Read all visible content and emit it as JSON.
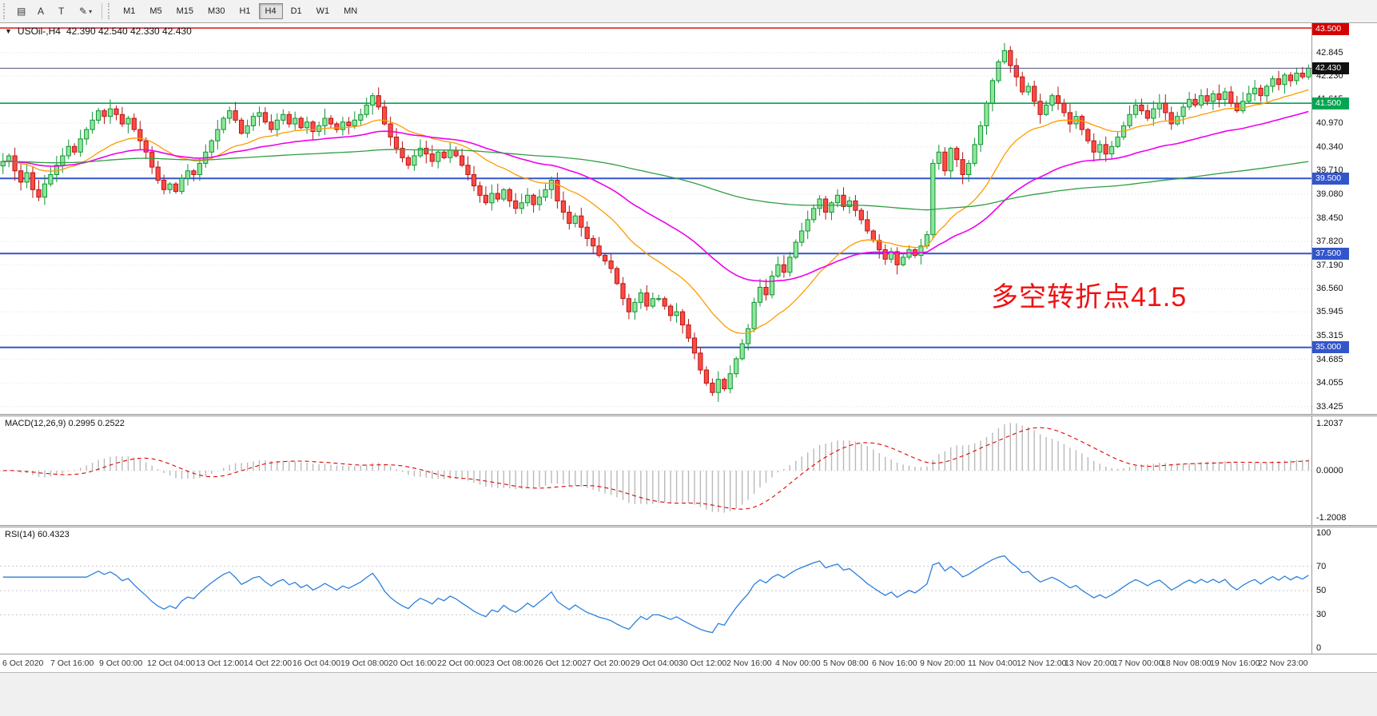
{
  "toolbar": {
    "tools": [
      {
        "name": "charts-tool",
        "icon": "chart-bars-icon",
        "glyph": "▤"
      },
      {
        "name": "cursor-a-tool",
        "icon": "text-a-icon",
        "glyph": "A"
      },
      {
        "name": "text-tool",
        "icon": "text-t-icon",
        "glyph": "T"
      },
      {
        "name": "draw-tool",
        "icon": "pencil-icon",
        "glyph": "✎",
        "caret": "▾"
      }
    ],
    "timeframes": [
      "M1",
      "M5",
      "M15",
      "M30",
      "H1",
      "H4",
      "D1",
      "W1",
      "MN"
    ],
    "active_timeframe": "H4"
  },
  "chart": {
    "dropdown_glyph": "▼",
    "symbol_period": "USOil-,H4",
    "ohlc_readout": "42.390 42.540 42.330 42.430"
  },
  "chart_data": {
    "type": "candlestick",
    "symbol": "USOil-",
    "period": "H4",
    "current_bar": {
      "open": 42.39,
      "high": 42.54,
      "low": 42.33,
      "close": 42.43
    },
    "current_price": "42.430",
    "ylim": [
      33.23,
      43.63
    ],
    "y_ticks": [
      "42.845",
      "42.230",
      "41.615",
      "40.970",
      "40.340",
      "39.710",
      "39.080",
      "38.450",
      "37.820",
      "37.190",
      "36.560",
      "35.945",
      "35.315",
      "34.685",
      "34.055",
      "33.425"
    ],
    "x_labels": [
      "6 Oct 2020",
      "7 Oct 16:00",
      "9 Oct 00:00",
      "12 Oct 04:00",
      "13 Oct 12:00",
      "14 Oct 22:00",
      "16 Oct 04:00",
      "19 Oct 08:00",
      "20 Oct 16:00",
      "22 Oct 00:00",
      "23 Oct 08:00",
      "26 Oct 12:00",
      "27 Oct 20:00",
      "29 Oct 04:00",
      "30 Oct 12:00",
      "2 Nov 16:00",
      "4 Nov 00:00",
      "5 Nov 08:00",
      "6 Nov 16:00",
      "9 Nov 20:00",
      "11 Nov 04:00",
      "12 Nov 12:00",
      "13 Nov 20:00",
      "17 Nov 00:00",
      "18 Nov 08:00",
      "19 Nov 16:00",
      "22 Nov 23:00"
    ],
    "hlines": [
      {
        "value": 43.5,
        "label": "43.500",
        "color": "#d40000",
        "width": 1.4
      },
      {
        "value": 41.5,
        "label": "41.500",
        "color": "#00a651",
        "width": 1.6
      },
      {
        "value": 39.5,
        "label": "39.500",
        "color": "#3355cc",
        "width": 2
      },
      {
        "value": 37.5,
        "label": "37.500",
        "color": "#3355cc",
        "width": 2
      },
      {
        "value": 35.0,
        "label": "35.000",
        "color": "#3355cc",
        "width": 2
      }
    ],
    "bid_line": {
      "value": 42.43,
      "color": "#50507a"
    },
    "candles": {
      "up_fill": "#8ee79b",
      "up_stroke": "#0f9333",
      "down_fill": "#ff4a42",
      "down_stroke": "#b51616"
    },
    "closes": [
      39.95,
      40.1,
      39.7,
      39.4,
      39.65,
      39.2,
      39.0,
      39.35,
      39.6,
      39.85,
      40.1,
      40.35,
      40.2,
      40.55,
      40.8,
      41.05,
      41.3,
      41.15,
      41.35,
      41.2,
      40.95,
      41.1,
      40.8,
      40.5,
      40.2,
      39.8,
      39.45,
      39.2,
      39.35,
      39.15,
      39.5,
      39.7,
      39.6,
      39.9,
      40.2,
      40.5,
      40.8,
      41.1,
      41.3,
      41.05,
      40.7,
      40.9,
      41.15,
      41.25,
      41.0,
      40.8,
      41.05,
      41.2,
      40.95,
      41.1,
      40.85,
      41.0,
      40.75,
      40.9,
      41.1,
      40.95,
      40.8,
      41.0,
      40.9,
      41.05,
      41.2,
      41.45,
      41.7,
      41.4,
      40.95,
      40.6,
      40.3,
      40.05,
      39.85,
      40.1,
      40.3,
      40.15,
      39.95,
      40.2,
      40.05,
      40.25,
      40.1,
      39.85,
      39.6,
      39.3,
      39.05,
      38.85,
      39.1,
      38.95,
      39.2,
      38.9,
      38.7,
      38.85,
      39.05,
      38.8,
      39.0,
      39.2,
      39.45,
      38.9,
      38.6,
      38.3,
      38.5,
      38.2,
      37.9,
      37.7,
      37.45,
      37.3,
      37.1,
      36.7,
      36.3,
      35.95,
      36.2,
      36.45,
      36.1,
      36.3,
      36.3,
      36.1,
      35.85,
      35.95,
      35.6,
      35.25,
      34.85,
      34.4,
      34.05,
      33.8,
      34.15,
      33.9,
      34.3,
      34.7,
      35.1,
      35.5,
      36.2,
      36.6,
      36.4,
      36.9,
      37.2,
      37.0,
      37.4,
      37.8,
      38.1,
      38.4,
      38.7,
      38.95,
      38.6,
      38.85,
      39.05,
      38.75,
      38.9,
      38.65,
      38.4,
      38.1,
      37.85,
      37.6,
      37.35,
      37.55,
      37.2,
      37.4,
      37.6,
      37.45,
      37.7,
      38.0,
      39.9,
      40.2,
      39.7,
      40.3,
      40.0,
      39.6,
      39.9,
      40.4,
      40.9,
      41.5,
      42.1,
      42.6,
      42.9,
      42.5,
      42.2,
      41.8,
      41.95,
      41.55,
      41.2,
      41.45,
      41.7,
      41.5,
      41.25,
      40.95,
      41.15,
      40.8,
      40.5,
      40.2,
      40.4,
      40.15,
      40.35,
      40.6,
      40.9,
      41.2,
      41.45,
      41.3,
      41.1,
      41.35,
      41.5,
      41.25,
      40.95,
      41.15,
      41.4,
      41.6,
      41.45,
      41.7,
      41.55,
      41.75,
      41.6,
      41.8,
      41.5,
      41.3,
      41.55,
      41.75,
      41.9,
      41.7,
      41.95,
      42.15,
      42.0,
      42.25,
      42.1,
      42.3,
      42.2,
      42.43
    ],
    "overlays": [
      {
        "name": "MA fast",
        "period": 21,
        "color": "#ff9b00",
        "width": 1.3
      },
      {
        "name": "MA mid",
        "period": 50,
        "color": "#ee00ee",
        "width": 1.6
      },
      {
        "name": "MA slow",
        "period": 200,
        "color": "#2f9e44",
        "width": 1.3
      }
    ],
    "annotation": {
      "text": "多空转折点41.5",
      "color": "#ee1111"
    },
    "macd": {
      "label_text": "MACD(12,26,9) 0.2995 0.2522",
      "fast": 12,
      "slow": 26,
      "signal": 9,
      "ylim": [
        -1.38,
        1.38
      ],
      "y_tick_labels": [
        "1.2037",
        "0.0000",
        "-1.2008"
      ],
      "y_tick_values": [
        1.2037,
        0,
        -1.2008
      ],
      "hist_color": "#b9b9b9",
      "signal_color": "#e00000"
    },
    "rsi": {
      "label_text": "RSI(14) 60.4323",
      "period": 14,
      "levels": [
        70,
        50,
        30
      ],
      "scale_labels": [
        "100",
        "70",
        "50",
        "30",
        "0"
      ],
      "scale_values": [
        100,
        70,
        50,
        30,
        0
      ],
      "ylim": [
        0,
        100
      ],
      "line_color": "#2a7fde"
    }
  }
}
